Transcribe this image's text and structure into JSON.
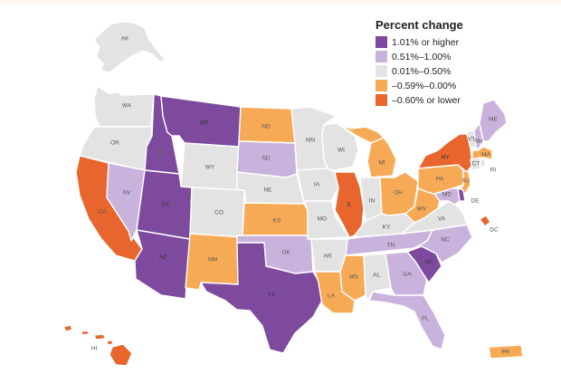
{
  "legend": {
    "title": "Percent change",
    "items": [
      {
        "label": "1.01% or higher",
        "color": "#7d4a9e"
      },
      {
        "label": "0.51%–1.00%",
        "color": "#c9b3dd"
      },
      {
        "label": "0.01%–0.50%",
        "color": "#e3e3e3"
      },
      {
        "label": "–0.59%–0.00%",
        "color": "#f7aa55"
      },
      {
        "label": "–0.60% or lower",
        "color": "#e8662d"
      }
    ]
  },
  "states": [
    {
      "code": "AK",
      "category": 2
    },
    {
      "code": "HI",
      "category": 4
    },
    {
      "code": "WA",
      "category": 2
    },
    {
      "code": "OR",
      "category": 2
    },
    {
      "code": "CA",
      "category": 4
    },
    {
      "code": "NV",
      "category": 1
    },
    {
      "code": "ID",
      "category": 0
    },
    {
      "code": "MT",
      "category": 0
    },
    {
      "code": "WY",
      "category": 2
    },
    {
      "code": "UT",
      "category": 0
    },
    {
      "code": "AZ",
      "category": 0
    },
    {
      "code": "CO",
      "category": 2
    },
    {
      "code": "NM",
      "category": 3
    },
    {
      "code": "ND",
      "category": 3
    },
    {
      "code": "SD",
      "category": 1
    },
    {
      "code": "NE",
      "category": 2
    },
    {
      "code": "KS",
      "category": 3
    },
    {
      "code": "OK",
      "category": 1
    },
    {
      "code": "TX",
      "category": 0
    },
    {
      "code": "MN",
      "category": 2
    },
    {
      "code": "IA",
      "category": 2
    },
    {
      "code": "MO",
      "category": 2
    },
    {
      "code": "AR",
      "category": 2
    },
    {
      "code": "LA",
      "category": 3
    },
    {
      "code": "WI",
      "category": 2
    },
    {
      "code": "IL",
      "category": 4
    },
    {
      "code": "MI",
      "category": 3
    },
    {
      "code": "IN",
      "category": 2
    },
    {
      "code": "OH",
      "category": 3
    },
    {
      "code": "KY",
      "category": 2
    },
    {
      "code": "TN",
      "category": 1
    },
    {
      "code": "MS",
      "category": 3
    },
    {
      "code": "AL",
      "category": 2
    },
    {
      "code": "GA",
      "category": 1
    },
    {
      "code": "FL",
      "category": 1
    },
    {
      "code": "SC",
      "category": 0
    },
    {
      "code": "NC",
      "category": 1
    },
    {
      "code": "VA",
      "category": 2
    },
    {
      "code": "WV",
      "category": 3
    },
    {
      "code": "PA",
      "category": 3
    },
    {
      "code": "NY",
      "category": 4
    },
    {
      "code": "VT",
      "category": 2
    },
    {
      "code": "NH",
      "category": 1
    },
    {
      "code": "ME",
      "category": 1
    },
    {
      "code": "MA",
      "category": 3
    },
    {
      "code": "CT",
      "category": 2
    },
    {
      "code": "RI",
      "category": 2
    },
    {
      "code": "NJ",
      "category": 3
    },
    {
      "code": "DE",
      "category": 0
    },
    {
      "code": "MD",
      "category": 1
    },
    {
      "code": "DC",
      "category": 4
    },
    {
      "code": "PR",
      "category": 3
    }
  ]
}
